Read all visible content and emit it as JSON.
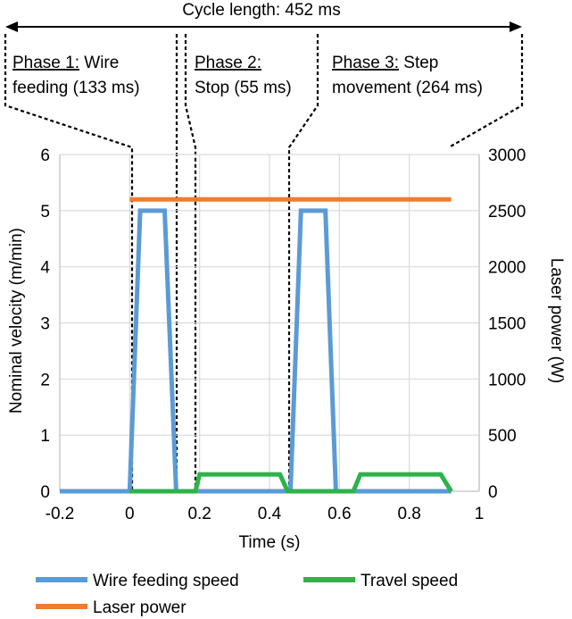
{
  "cycle_label": "Cycle length: 452 ms",
  "phases": [
    {
      "label": "Phase 1:",
      "desc_line1": " Wire",
      "desc_line2": "feeding (133 ms)"
    },
    {
      "label": "Phase 2:",
      "desc_line1": "",
      "desc_line2": "Stop (55 ms)"
    },
    {
      "label": "Phase 3:",
      "desc_line1": " Step",
      "desc_line2": "movement (264 ms)"
    }
  ],
  "chart_data": {
    "type": "line",
    "title": "",
    "xlabel": "Time (s)",
    "ylabel": "Nominal velocity (m/min)",
    "y2label": "Laser power (W)",
    "xlim": [
      -0.2,
      1
    ],
    "ylim": [
      0,
      6
    ],
    "y2lim": [
      0,
      3000
    ],
    "x_ticks": [
      -0.2,
      0,
      0.2,
      0.4,
      0.6,
      0.8,
      1
    ],
    "x_tick_labels": [
      "-0.2",
      "0",
      "0.2",
      "0.4",
      "0.6",
      "0.8",
      "1"
    ],
    "y_ticks": [
      0,
      1,
      2,
      3,
      4,
      5,
      6
    ],
    "y_tick_labels": [
      "0",
      "1",
      "2",
      "3",
      "4",
      "5",
      "6"
    ],
    "y2_ticks": [
      0,
      500,
      1000,
      1500,
      2000,
      2500,
      3000
    ],
    "y2_tick_labels": [
      "0",
      "500",
      "1000",
      "1500",
      "2000",
      "2500",
      "3000"
    ],
    "grid": true,
    "legend_position": "bottom",
    "series": [
      {
        "name": "Wire feeding speed",
        "color": "#5b9bd5",
        "axis": "left",
        "x": [
          -0.2,
          0,
          0.03,
          0.1,
          0.133,
          0.46,
          0.49,
          0.56,
          0.59,
          0.92
        ],
        "y": [
          0,
          0,
          5,
          5,
          0,
          0,
          5,
          5,
          0,
          0
        ]
      },
      {
        "name": "Travel speed",
        "color": "#2db34a",
        "axis": "left",
        "x": [
          0,
          0.188,
          0.2,
          0.43,
          0.452,
          0.64,
          0.66,
          0.89,
          0.92
        ],
        "y": [
          0,
          0,
          0.3,
          0.3,
          0,
          0,
          0.3,
          0.3,
          0
        ]
      },
      {
        "name": "Laser power",
        "color": "#ed7d31",
        "axis": "right",
        "x": [
          0,
          0.92
        ],
        "y": [
          2600,
          2600
        ]
      }
    ],
    "phase_boundaries": [
      0,
      0.133,
      0.188,
      0.452
    ]
  }
}
